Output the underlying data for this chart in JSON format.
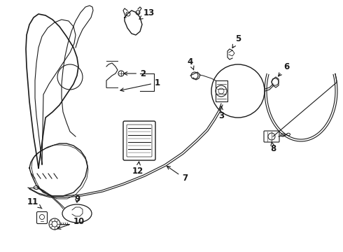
{
  "background_color": "#ffffff",
  "line_color": "#1a1a1a",
  "figsize": [
    4.9,
    3.6
  ],
  "dpi": 100,
  "xlim": [
    0,
    490
  ],
  "ylim": [
    0,
    360
  ]
}
